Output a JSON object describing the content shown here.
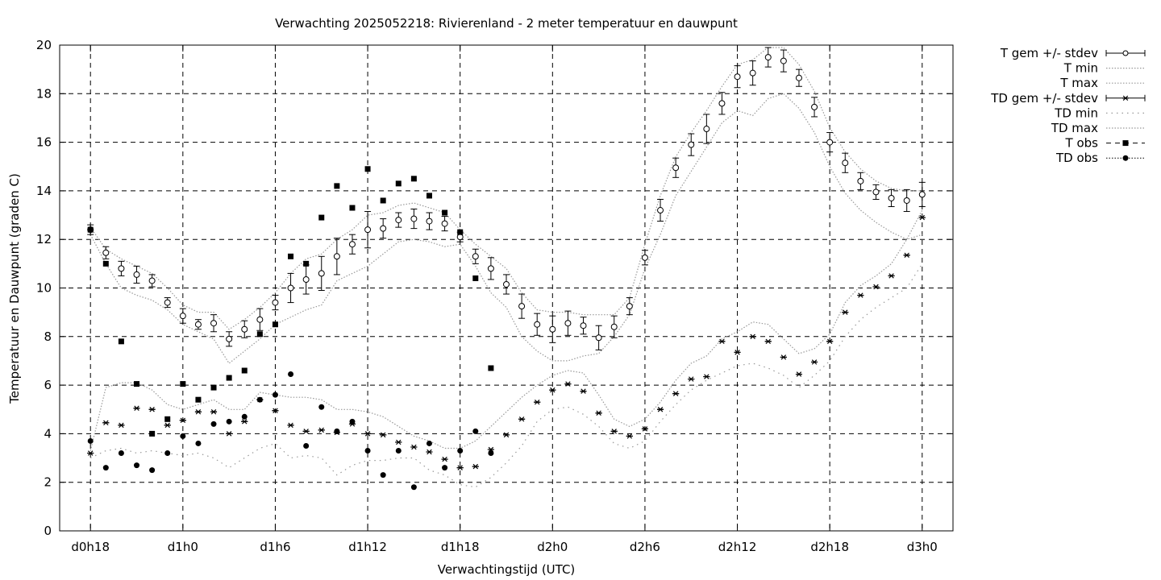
{
  "chart_data": {
    "type": "scatter",
    "title": "Verwachting 2025052218: Rivierenland - 2 meter temperatuur en dauwpunt",
    "xlabel": "Verwachtingstijd (UTC)",
    "ylabel": "Temperatuur en Dauwpunt (graden C)",
    "x_unit": "hours",
    "xlim": [
      16,
      74
    ],
    "ylim": [
      0,
      20
    ],
    "yticks": [
      0,
      2,
      4,
      6,
      8,
      10,
      12,
      14,
      16,
      18,
      20
    ],
    "xticks": [
      {
        "x": 18,
        "label": "d0h18"
      },
      {
        "x": 24,
        "label": "d1h0"
      },
      {
        "x": 30,
        "label": "d1h6"
      },
      {
        "x": 36,
        "label": "d1h12"
      },
      {
        "x": 42,
        "label": "d1h18"
      },
      {
        "x": 48,
        "label": "d2h0"
      },
      {
        "x": 54,
        "label": "d2h6"
      },
      {
        "x": 60,
        "label": "d2h12"
      },
      {
        "x": 66,
        "label": "d2h18"
      },
      {
        "x": 72,
        "label": "d3h0"
      }
    ],
    "grid": true,
    "legend_position": "outside-top-right",
    "legend": [
      {
        "label": "T gem +/- stdev",
        "style": "errorbar-circle"
      },
      {
        "label": "T min",
        "style": "dotted"
      },
      {
        "label": "T max",
        "style": "dotted"
      },
      {
        "label": "TD gem +/- stdev",
        "style": "errorbar-star"
      },
      {
        "label": "TD min",
        "style": "dotted-sparse"
      },
      {
        "label": "TD max",
        "style": "dotted"
      },
      {
        "label": "T obs",
        "style": "square"
      },
      {
        "label": "TD obs",
        "style": "dot"
      }
    ],
    "x": [
      18,
      19,
      20,
      21,
      22,
      23,
      24,
      25,
      26,
      27,
      28,
      29,
      30,
      31,
      32,
      33,
      34,
      35,
      36,
      37,
      38,
      39,
      40,
      41,
      42,
      43,
      44,
      45,
      46,
      47,
      48,
      49,
      50,
      51,
      52,
      53,
      54,
      55,
      56,
      57,
      58,
      59,
      60,
      61,
      62,
      63,
      64,
      65,
      66,
      67,
      68,
      69,
      70,
      71,
      72
    ],
    "series": [
      {
        "name": "T gem +/- stdev",
        "values": [
          12.4,
          11.45,
          10.8,
          10.55,
          10.3,
          9.4,
          8.85,
          8.5,
          8.55,
          7.9,
          8.3,
          8.7,
          9.4,
          10.0,
          10.35,
          10.6,
          11.3,
          11.8,
          12.4,
          12.45,
          12.8,
          12.85,
          12.75,
          12.65,
          12.1,
          11.3,
          10.8,
          10.15,
          9.25,
          8.5,
          8.3,
          8.55,
          8.45,
          7.95,
          8.4,
          9.25,
          11.25,
          13.2,
          14.95,
          15.9,
          16.55,
          17.6,
          18.7,
          18.85,
          19.5,
          19.35,
          18.65,
          17.45,
          16.0,
          15.15,
          14.4,
          13.95,
          13.7,
          13.6,
          13.85
        ],
        "stdev": [
          0.2,
          0.25,
          0.3,
          0.35,
          0.25,
          0.2,
          0.3,
          0.2,
          0.35,
          0.3,
          0.35,
          0.45,
          0.3,
          0.6,
          0.6,
          0.7,
          0.75,
          0.4,
          0.75,
          0.4,
          0.3,
          0.4,
          0.35,
          0.3,
          0.2,
          0.3,
          0.45,
          0.4,
          0.5,
          0.45,
          0.55,
          0.5,
          0.35,
          0.5,
          0.45,
          0.35,
          0.3,
          0.45,
          0.4,
          0.45,
          0.6,
          0.45,
          0.45,
          0.5,
          0.4,
          0.45,
          0.35,
          0.4,
          0.4,
          0.4,
          0.35,
          0.3,
          0.35,
          0.45,
          0.5
        ]
      },
      {
        "name": "T min",
        "values": [
          12.2,
          11.0,
          10.0,
          9.7,
          9.5,
          9.1,
          8.5,
          8.2,
          7.9,
          6.9,
          7.4,
          7.9,
          8.5,
          8.8,
          9.1,
          9.3,
          10.3,
          10.6,
          10.9,
          11.4,
          11.9,
          12.0,
          11.9,
          11.7,
          11.8,
          10.9,
          9.8,
          9.2,
          8.0,
          7.4,
          7.0,
          7.0,
          7.2,
          7.3,
          8.0,
          8.9,
          10.8,
          12.2,
          13.8,
          14.8,
          15.8,
          16.8,
          17.3,
          17.1,
          17.8,
          18.0,
          17.4,
          16.4,
          15.0,
          13.9,
          13.2,
          12.7,
          12.3,
          12.0,
          12.2
        ]
      },
      {
        "name": "T max",
        "values": [
          12.5,
          11.6,
          11.2,
          10.9,
          10.6,
          10.0,
          9.3,
          9.0,
          9.0,
          8.3,
          8.7,
          9.2,
          9.8,
          10.6,
          11.2,
          11.4,
          12.0,
          12.4,
          13.0,
          13.1,
          13.4,
          13.5,
          13.3,
          13.1,
          12.4,
          11.8,
          11.3,
          10.8,
          9.8,
          9.1,
          9.0,
          9.0,
          8.9,
          8.9,
          8.9,
          9.6,
          11.8,
          13.8,
          15.4,
          16.4,
          17.3,
          18.3,
          19.2,
          19.4,
          19.9,
          19.9,
          19.2,
          18.1,
          16.6,
          15.6,
          14.9,
          14.4,
          14.1,
          14.0,
          14.0
        ]
      },
      {
        "name": "TD gem +/- stdev",
        "values": [
          3.2,
          4.45,
          4.35,
          5.05,
          5.0,
          4.35,
          4.55,
          4.9,
          4.9,
          4.0,
          4.5,
          5.4,
          4.95,
          4.35,
          4.1,
          4.15,
          4.05,
          4.4,
          4.0,
          3.95,
          3.65,
          3.45,
          3.25,
          2.95,
          2.6,
          2.65,
          3.35,
          3.95,
          4.6,
          5.3,
          5.8,
          6.05,
          5.75,
          4.85,
          4.1,
          3.9,
          4.2,
          5.0,
          5.65,
          6.25,
          6.35,
          7.8,
          7.35,
          8.0,
          7.8,
          7.15,
          6.45,
          6.95,
          7.8,
          9.0,
          9.7,
          10.05,
          10.5,
          11.35,
          12.9
        ]
      },
      {
        "name": "TD min",
        "values": [
          3.0,
          3.3,
          3.4,
          3.2,
          3.3,
          3.2,
          3.1,
          3.2,
          3.0,
          2.6,
          3.0,
          3.4,
          3.6,
          3.0,
          3.1,
          3.0,
          2.3,
          2.7,
          2.9,
          2.9,
          3.0,
          3.0,
          2.5,
          2.3,
          1.9,
          1.8,
          2.2,
          2.8,
          3.5,
          4.5,
          5.0,
          5.1,
          4.8,
          4.3,
          3.6,
          3.4,
          3.7,
          4.5,
          5.2,
          5.8,
          6.2,
          6.5,
          6.8,
          6.9,
          6.7,
          6.4,
          5.9,
          6.4,
          7.0,
          8.0,
          8.7,
          9.2,
          9.6,
          10.0,
          11.0
        ]
      },
      {
        "name": "TD max",
        "values": [
          3.3,
          5.9,
          6.1,
          6.1,
          5.8,
          5.2,
          5.0,
          5.2,
          5.4,
          5.0,
          5.0,
          5.7,
          5.6,
          5.5,
          5.5,
          5.4,
          5.0,
          5.0,
          4.9,
          4.7,
          4.3,
          3.9,
          3.7,
          3.4,
          3.4,
          3.7,
          4.3,
          4.9,
          5.5,
          6.0,
          6.4,
          6.6,
          6.5,
          5.6,
          4.6,
          4.3,
          4.6,
          5.3,
          6.2,
          6.9,
          7.2,
          7.9,
          8.2,
          8.6,
          8.5,
          7.9,
          7.3,
          7.5,
          8.1,
          9.4,
          10.1,
          10.5,
          11.0,
          12.0,
          13.2
        ]
      },
      {
        "name": "T obs",
        "values": [
          12.4,
          11.0,
          7.8,
          6.05,
          4.0,
          4.6,
          6.05,
          5.4,
          5.9,
          6.3,
          6.6,
          8.1,
          8.5,
          11.3,
          11.0,
          12.9,
          14.2,
          13.3,
          14.9,
          13.6,
          14.3,
          14.5,
          13.8,
          13.1,
          12.3,
          10.4,
          6.7,
          null,
          null,
          null,
          null,
          null,
          null,
          null,
          null,
          null,
          null,
          null,
          null,
          null,
          null,
          null,
          null,
          null,
          null,
          null,
          null,
          null,
          null,
          null,
          null,
          null,
          null,
          null,
          null
        ]
      },
      {
        "name": "TD obs",
        "values": [
          3.7,
          2.6,
          3.2,
          2.7,
          2.5,
          3.2,
          3.9,
          3.6,
          4.4,
          4.5,
          4.7,
          5.4,
          5.6,
          6.45,
          3.5,
          5.1,
          4.1,
          4.5,
          3.3,
          2.3,
          3.3,
          1.8,
          3.6,
          2.6,
          3.3,
          4.1,
          3.2,
          null,
          null,
          null,
          null,
          null,
          null,
          null,
          null,
          null,
          null,
          null,
          null,
          null,
          null,
          null,
          null,
          null,
          null,
          null,
          null,
          null,
          null,
          null,
          null,
          null,
          null,
          null,
          null
        ]
      }
    ]
  }
}
